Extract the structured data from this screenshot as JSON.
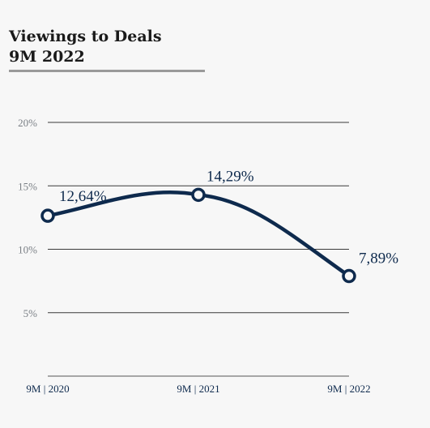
{
  "title": {
    "line1": "Viewings to Deals",
    "line2": "9M 2022"
  },
  "chart_data": {
    "type": "line",
    "categories": [
      "9M | 2020",
      "9M | 2021",
      "9M | 2022"
    ],
    "series": [
      {
        "values": [
          12.64,
          14.29,
          7.89
        ]
      }
    ],
    "data_labels": [
      "12,64%",
      "14,29%",
      "7,89%"
    ],
    "yticks": [
      0,
      5,
      10,
      15,
      20
    ],
    "ytick_labels": [
      "",
      "5%",
      "10%",
      "15%",
      "20%"
    ],
    "ylim": [
      0,
      20
    ],
    "grid": true,
    "line_color": "#0e2a4d",
    "marker_fill": "#f7f7f7"
  }
}
